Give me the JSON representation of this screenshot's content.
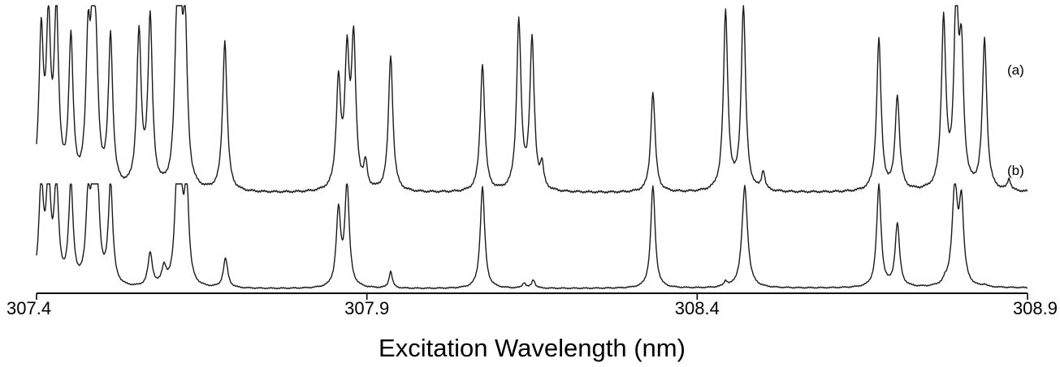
{
  "chart_data": {
    "type": "line",
    "xlabel": "Excitation Wavelength (nm)",
    "ylabel": "",
    "xlim": [
      307.4,
      308.9
    ],
    "xticks": [
      307.4,
      307.9,
      308.4,
      308.9
    ],
    "tick_labels": [
      "307.4",
      "307.9",
      "308.4",
      "308.9"
    ],
    "grid": false,
    "colors": {
      "trace": "#1a1a1a",
      "axis": "#000000"
    },
    "series": [
      {
        "name": "(a)",
        "baseline": [
          0,
          0.006
        ],
        "peaks": [
          [
            307.407,
            0.8,
            0.004
          ],
          [
            307.418,
            0.82,
            0.004
          ],
          [
            307.43,
            0.92,
            0.004
          ],
          [
            307.452,
            0.78,
            0.004
          ],
          [
            307.478,
            0.7,
            0.004
          ],
          [
            307.485,
            0.68,
            0.004
          ],
          [
            307.49,
            0.55,
            0.004
          ],
          [
            307.512,
            0.8,
            0.004
          ],
          [
            307.555,
            0.82,
            0.004
          ],
          [
            307.572,
            0.9,
            0.004
          ],
          [
            307.612,
            0.7,
            0.004
          ],
          [
            307.618,
            0.68,
            0.004
          ],
          [
            307.625,
            0.78,
            0.004
          ],
          [
            307.685,
            0.8,
            0.004
          ],
          [
            307.857,
            0.57,
            0.004
          ],
          [
            307.87,
            0.68,
            0.004
          ],
          [
            307.88,
            0.77,
            0.004
          ],
          [
            307.898,
            0.13,
            0.003
          ],
          [
            307.936,
            0.72,
            0.004
          ],
          [
            308.075,
            0.68,
            0.004
          ],
          [
            308.13,
            0.9,
            0.004
          ],
          [
            308.15,
            0.8,
            0.004
          ],
          [
            308.165,
            0.12,
            0.003
          ],
          [
            308.333,
            0.53,
            0.004
          ],
          [
            308.443,
            0.95,
            0.004
          ],
          [
            308.47,
            0.98,
            0.004
          ],
          [
            308.5,
            0.1,
            0.003
          ],
          [
            308.675,
            0.81,
            0.004
          ],
          [
            308.703,
            0.5,
            0.004
          ],
          [
            308.773,
            0.9,
            0.004
          ],
          [
            308.792,
            0.95,
            0.004
          ],
          [
            308.8,
            0.67,
            0.004
          ],
          [
            308.835,
            0.8,
            0.004
          ],
          [
            308.872,
            0.06,
            0.003
          ]
        ]
      },
      {
        "name": "(b)",
        "baseline": [
          0,
          0.012
        ],
        "peaks": [
          [
            307.407,
            0.97,
            0.004
          ],
          [
            307.418,
            0.97,
            0.004
          ],
          [
            307.43,
            0.95,
            0.004
          ],
          [
            307.452,
            0.95,
            0.004
          ],
          [
            307.478,
            0.74,
            0.004
          ],
          [
            307.486,
            0.85,
            0.004
          ],
          [
            307.492,
            0.8,
            0.004
          ],
          [
            307.512,
            0.97,
            0.004
          ],
          [
            307.572,
            0.32,
            0.004
          ],
          [
            307.593,
            0.17,
            0.004
          ],
          [
            307.612,
            0.78,
            0.004
          ],
          [
            307.618,
            0.82,
            0.004
          ],
          [
            307.627,
            0.95,
            0.004
          ],
          [
            307.686,
            0.28,
            0.004
          ],
          [
            307.857,
            0.72,
            0.004
          ],
          [
            307.87,
            0.97,
            0.004
          ],
          [
            307.936,
            0.16,
            0.003
          ],
          [
            308.075,
            0.97,
            0.004
          ],
          [
            308.138,
            0.05,
            0.003
          ],
          [
            308.152,
            0.08,
            0.003
          ],
          [
            308.333,
            0.97,
            0.004
          ],
          [
            308.443,
            0.05,
            0.003
          ],
          [
            308.472,
            0.97,
            0.005
          ],
          [
            308.675,
            0.97,
            0.004
          ],
          [
            308.703,
            0.6,
            0.004
          ],
          [
            308.775,
            0.03,
            0.003
          ],
          [
            308.79,
            0.92,
            0.005
          ],
          [
            308.8,
            0.75,
            0.004
          ],
          [
            308.835,
            0.02,
            0.003
          ]
        ]
      }
    ]
  }
}
